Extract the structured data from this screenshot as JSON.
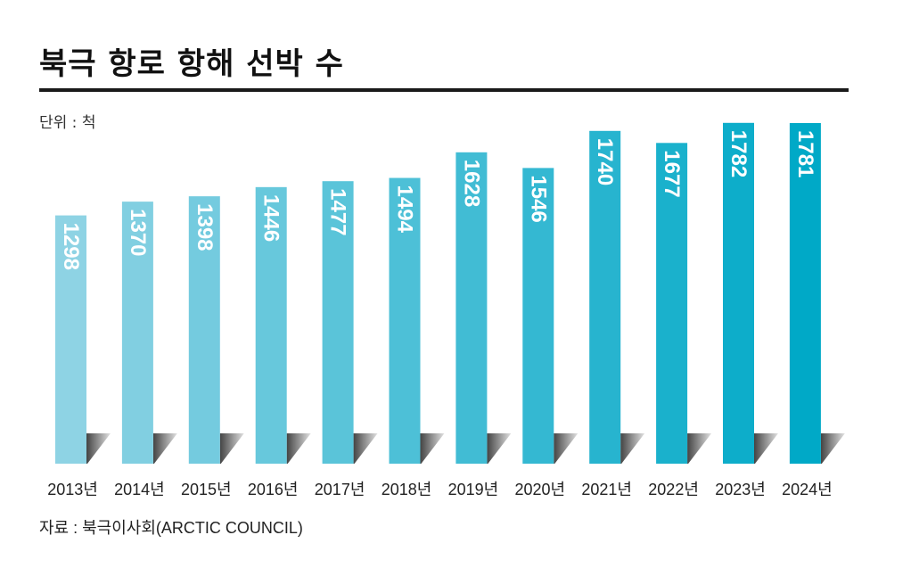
{
  "title": "북극 항로 항해 선박 수",
  "unit_label": "단위 : 척",
  "source": "자료 : 북극이사회(ARCTIC COUNCIL)",
  "colors": {
    "bar_start": "#8ed3e4",
    "bar_end": "#00a9c7",
    "shadow": "#3a3a3a",
    "rule": "#1a1a1a"
  },
  "chart_data": {
    "type": "bar",
    "title": "북극 항로 항해 선박 수",
    "unit": "척",
    "categories": [
      "2013년",
      "2014년",
      "2015년",
      "2016년",
      "2017년",
      "2018년",
      "2019년",
      "2020년",
      "2021년",
      "2022년",
      "2023년",
      "2024년"
    ],
    "values": [
      1298,
      1370,
      1398,
      1446,
      1477,
      1494,
      1628,
      1546,
      1740,
      1677,
      1782,
      1781
    ],
    "value_labels": "vertical, inside bar top",
    "grid": false,
    "legend": "none"
  }
}
